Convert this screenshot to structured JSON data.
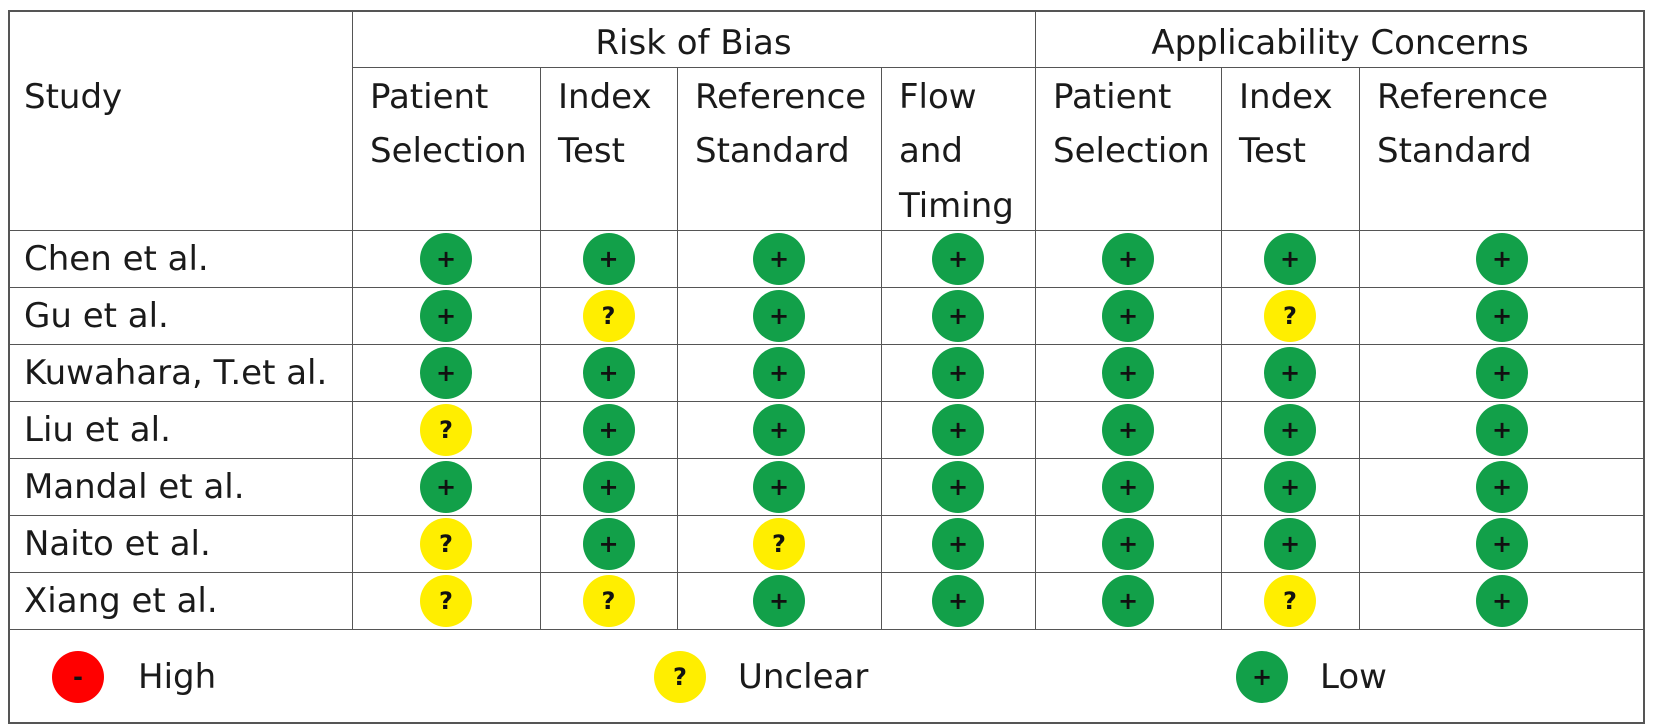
{
  "groups": {
    "risk_of_bias": "Risk of Bias",
    "applicability": "Applicability Concerns"
  },
  "study_header": "Study",
  "columns": [
    "Patient\nSelection",
    "Index\nTest",
    "Reference\nStandard",
    "Flow\nand\nTiming",
    "Patient\nSelection",
    "Index\nTest",
    "Reference\nStandard"
  ],
  "rows": [
    {
      "study": "Chen et al.",
      "ratings": [
        "low",
        "low",
        "low",
        "low",
        "low",
        "low",
        "low"
      ]
    },
    {
      "study": "Gu et al.",
      "ratings": [
        "low",
        "unclear",
        "low",
        "low",
        "low",
        "unclear",
        "low"
      ]
    },
    {
      "study": "Kuwahara, T.et al.",
      "ratings": [
        "low",
        "low",
        "low",
        "low",
        "low",
        "low",
        "low"
      ]
    },
    {
      "study": "Liu et al.",
      "ratings": [
        "unclear",
        "low",
        "low",
        "low",
        "low",
        "low",
        "low"
      ]
    },
    {
      "study": "Mandal et al.",
      "ratings": [
        "low",
        "low",
        "low",
        "low",
        "low",
        "low",
        "low"
      ]
    },
    {
      "study": "Naito et al.",
      "ratings": [
        "unclear",
        "low",
        "unclear",
        "low",
        "low",
        "low",
        "low"
      ]
    },
    {
      "study": "Xiang et al.",
      "ratings": [
        "unclear",
        "unclear",
        "low",
        "low",
        "low",
        "unclear",
        "low"
      ]
    }
  ],
  "symbols": {
    "low": "+",
    "unclear": "?",
    "high": "-"
  },
  "colors": {
    "low": "#12a049",
    "unclear": "#ffee00",
    "high": "#ff0000"
  },
  "legend": [
    {
      "key": "high",
      "symbol": "-",
      "label": "High"
    },
    {
      "key": "unclear",
      "symbol": "?",
      "label": "Unclear"
    },
    {
      "key": "low",
      "symbol": "+",
      "label": "Low"
    }
  ]
}
